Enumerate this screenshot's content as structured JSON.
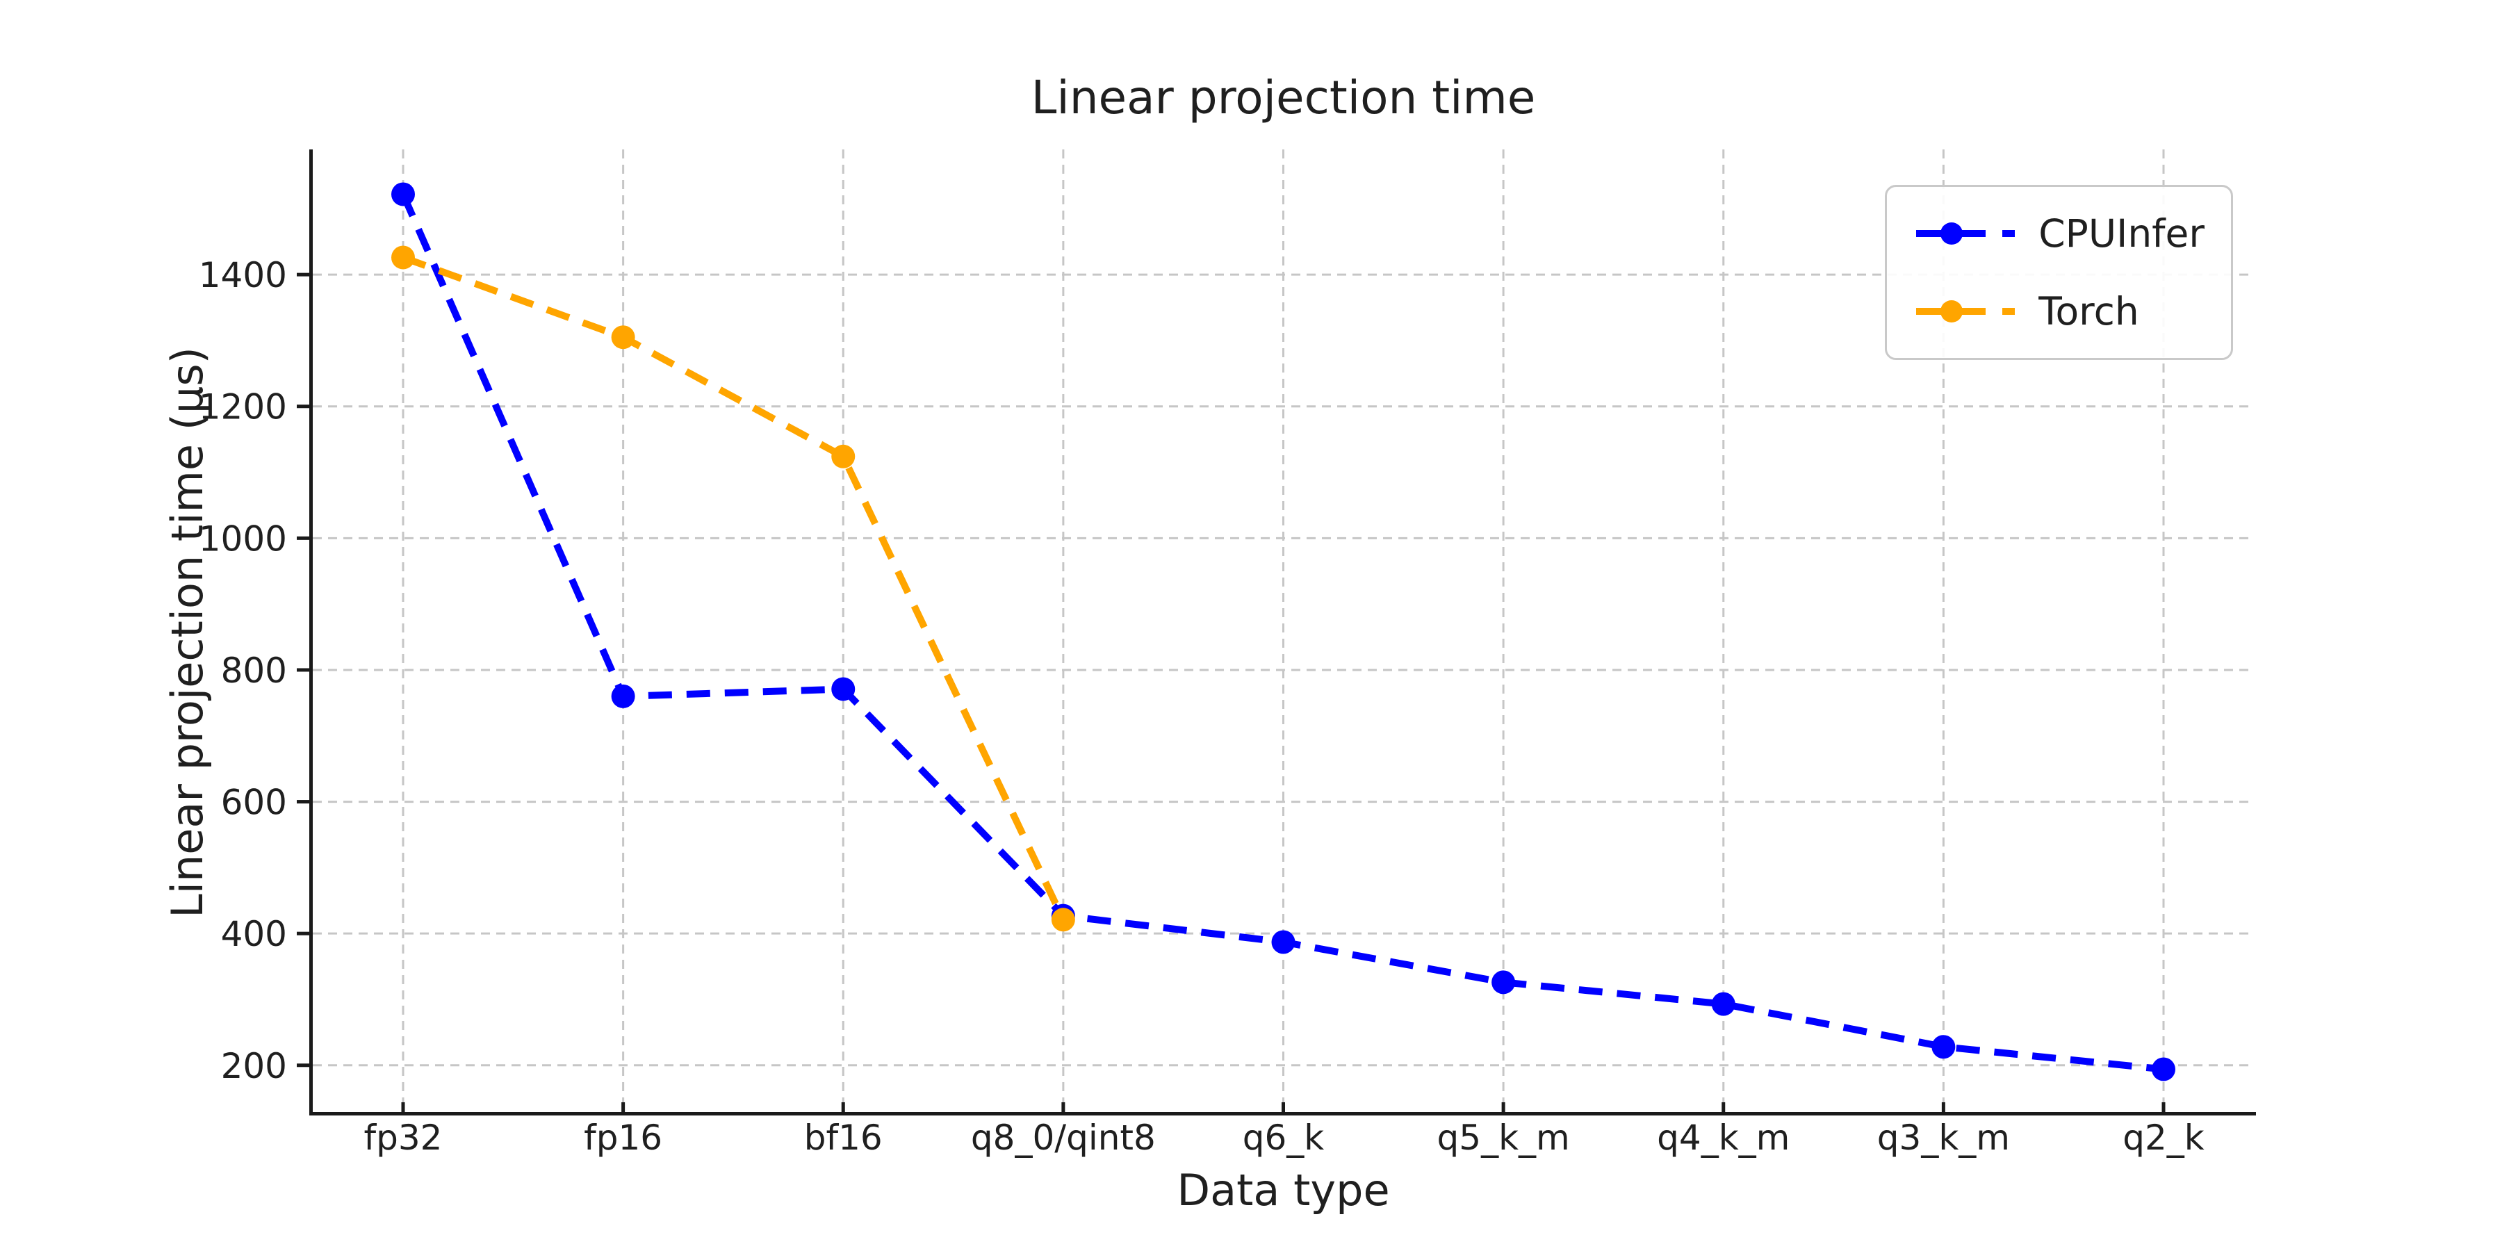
{
  "style": {
    "background": "#ffffff",
    "text_color": "#1f1f1f",
    "grid_color": "#c6c6c6",
    "spine_color": "#1a1a1a",
    "legend_border_color": "#c9c9c9"
  },
  "chart_data": {
    "type": "line",
    "title": "Linear projection time",
    "xlabel": "Data type",
    "ylabel": "Linear projection time (μs)",
    "categories": [
      "fp32",
      "fp16",
      "bf16",
      "q8_0/qint8",
      "q6_k",
      "q5_k_m",
      "q4_k_m",
      "q3_k_m",
      "q2_k"
    ],
    "series": [
      {
        "name": "CPUInfer",
        "color": "#0000ff",
        "line_style": "dashed",
        "marker": "circle",
        "values": [
          1522,
          760,
          771,
          427,
          387,
          326,
          293,
          228,
          194
        ]
      },
      {
        "name": "Torch",
        "color": "#ffa500",
        "line_style": "dashed",
        "marker": "circle",
        "values": [
          1426,
          1305,
          1124,
          421,
          null,
          null,
          null,
          null,
          null
        ]
      }
    ],
    "yticks": [
      200,
      400,
      600,
      800,
      1000,
      1200,
      1400
    ],
    "ylim": [
      127,
      1590
    ],
    "grid": true,
    "grid_style": "dashed",
    "legend_position": "upper right"
  }
}
